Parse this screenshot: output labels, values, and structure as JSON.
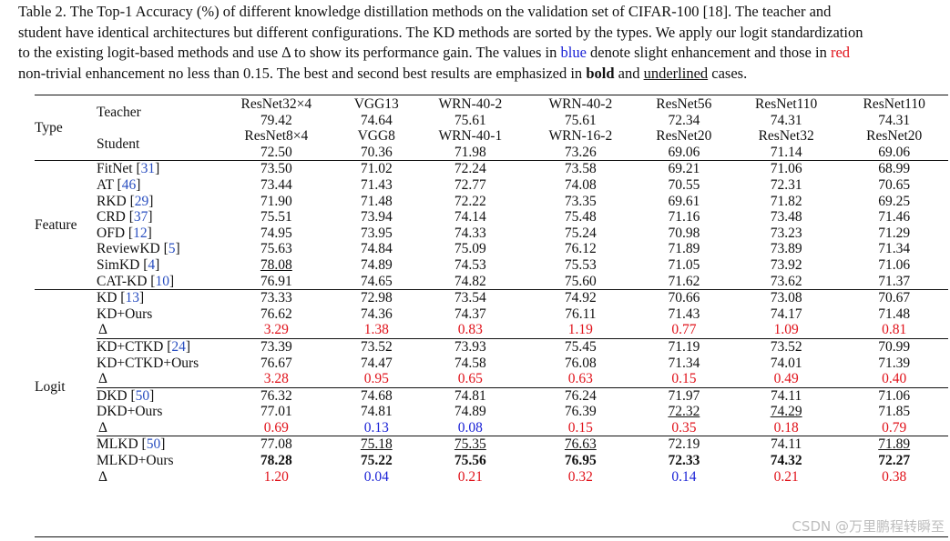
{
  "caption": {
    "line1": "Table 2. The Top-1 Accuracy (%) of different knowledge distillation methods on the validation set of CIFAR-100 [18]. The teacher and",
    "line2": "student have identical architectures but different configurations. The KD methods are sorted by the types. We apply our logit standardization",
    "line3_pre": "to the existing logit-based methods and use Δ to show its performance gain. The values in ",
    "line3_blue": "blue",
    "line3_mid": " denote slight enhancement and those in ",
    "line3_red": "red",
    "line4_pre": "non-trivial enhancement no less than 0.15. The best and second best results are emphasized in ",
    "line4_bold": "bold",
    "line4_mid": " and ",
    "line4_under": "underlined",
    "line4_post": " cases."
  },
  "header": {
    "type_label": "Type",
    "teacher_label": "Teacher",
    "student_label": "Student",
    "teachers": [
      "ResNet32×4",
      "VGG13",
      "WRN-40-2",
      "WRN-40-2",
      "ResNet56",
      "ResNet110",
      "ResNet110"
    ],
    "teacher_acc": [
      "79.42",
      "74.64",
      "75.61",
      "75.61",
      "72.34",
      "74.31",
      "74.31"
    ],
    "students": [
      "ResNet8×4",
      "VGG8",
      "WRN-40-1",
      "WRN-16-2",
      "ResNet20",
      "ResNet32",
      "ResNet20"
    ],
    "student_acc": [
      "72.50",
      "70.36",
      "71.98",
      "73.26",
      "69.06",
      "71.14",
      "69.06"
    ]
  },
  "feature": {
    "type_label": "Feature",
    "rows": [
      {
        "name": "FitNet",
        "ref": "31",
        "values": [
          "73.50",
          "71.02",
          "72.24",
          "73.58",
          "69.21",
          "71.06",
          "68.99"
        ]
      },
      {
        "name": "AT",
        "ref": "46",
        "values": [
          "73.44",
          "71.43",
          "72.77",
          "74.08",
          "70.55",
          "72.31",
          "70.65"
        ]
      },
      {
        "name": "RKD",
        "ref": "29",
        "values": [
          "71.90",
          "71.48",
          "72.22",
          "73.35",
          "69.61",
          "71.82",
          "69.25"
        ]
      },
      {
        "name": "CRD",
        "ref": "37",
        "values": [
          "75.51",
          "73.94",
          "74.14",
          "75.48",
          "71.16",
          "73.48",
          "71.46"
        ]
      },
      {
        "name": "OFD",
        "ref": "12",
        "values": [
          "74.95",
          "73.95",
          "74.33",
          "75.24",
          "70.98",
          "73.23",
          "71.29"
        ]
      },
      {
        "name": "ReviewKD",
        "ref": "5",
        "values": [
          "75.63",
          "74.84",
          "75.09",
          "76.12",
          "71.89",
          "73.89",
          "71.34"
        ]
      },
      {
        "name": "SimKD",
        "ref": "4",
        "values": [
          "78.08",
          "74.89",
          "74.53",
          "75.53",
          "71.05",
          "73.92",
          "71.06"
        ]
      },
      {
        "name": "CAT-KD",
        "ref": "10",
        "values": [
          "76.91",
          "74.65",
          "74.82",
          "75.60",
          "71.62",
          "73.62",
          "71.37"
        ]
      }
    ]
  },
  "logit": {
    "type_label": "Logit",
    "groups": [
      {
        "base": {
          "name": "KD",
          "ref": "13",
          "values": [
            "73.33",
            "72.98",
            "73.54",
            "74.92",
            "70.66",
            "73.08",
            "70.67"
          ]
        },
        "ours": {
          "name": "KD+Ours",
          "values": [
            "76.62",
            "74.36",
            "74.37",
            "76.11",
            "71.43",
            "74.17",
            "71.48"
          ]
        },
        "delta": {
          "name": "Δ",
          "values": [
            "3.29",
            "1.38",
            "0.83",
            "1.19",
            "0.77",
            "1.09",
            "0.81"
          ],
          "colors": [
            "red",
            "red",
            "red",
            "red",
            "red",
            "red",
            "red"
          ]
        }
      },
      {
        "base": {
          "name": "KD+CTKD",
          "ref": "24",
          "values": [
            "73.39",
            "73.52",
            "73.93",
            "75.45",
            "71.19",
            "73.52",
            "70.99"
          ]
        },
        "ours": {
          "name": "KD+CTKD+Ours",
          "values": [
            "76.67",
            "74.47",
            "74.58",
            "76.08",
            "71.34",
            "74.01",
            "71.39"
          ]
        },
        "delta": {
          "name": "Δ",
          "values": [
            "3.28",
            "0.95",
            "0.65",
            "0.63",
            "0.15",
            "0.49",
            "0.40"
          ],
          "colors": [
            "red",
            "red",
            "red",
            "red",
            "red",
            "red",
            "red"
          ]
        }
      },
      {
        "base": {
          "name": "DKD",
          "ref": "50",
          "values": [
            "76.32",
            "74.68",
            "74.81",
            "76.24",
            "71.97",
            "74.11",
            "71.06"
          ]
        },
        "ours": {
          "name": "DKD+Ours",
          "values": [
            "77.01",
            "74.81",
            "74.89",
            "76.39",
            "72.32",
            "74.29",
            "71.85"
          ]
        },
        "delta": {
          "name": "Δ",
          "values": [
            "0.69",
            "0.13",
            "0.08",
            "0.15",
            "0.35",
            "0.18",
            "0.79"
          ],
          "colors": [
            "red",
            "blue",
            "blue",
            "red",
            "red",
            "red",
            "red"
          ]
        }
      },
      {
        "base": {
          "name": "MLKD",
          "ref": "50",
          "values": [
            "77.08",
            "75.18",
            "75.35",
            "76.63",
            "72.19",
            "74.11",
            "71.89"
          ]
        },
        "ours": {
          "name": "MLKD+Ours",
          "values": [
            "78.28",
            "75.22",
            "75.56",
            "76.95",
            "72.33",
            "74.32",
            "72.27"
          ]
        },
        "delta": {
          "name": "Δ",
          "values": [
            "1.20",
            "0.04",
            "0.21",
            "0.32",
            "0.14",
            "0.21",
            "0.38"
          ],
          "colors": [
            "red",
            "blue",
            "red",
            "red",
            "blue",
            "red",
            "red"
          ]
        }
      }
    ]
  },
  "emphasis": {
    "underlined": [
      "feature.6.0",
      "logit.2.ours.4",
      "logit.2.ours.5",
      "logit.3.base.1",
      "logit.3.base.2",
      "logit.3.base.3",
      "logit.3.base.6"
    ],
    "bold": [
      "logit.3.ours.0",
      "logit.3.ours.1",
      "logit.3.ours.2",
      "logit.3.ours.3",
      "logit.3.ours.4",
      "logit.3.ours.5",
      "logit.3.ours.6"
    ]
  },
  "watermark": "CSDN @万里鹏程转瞬至"
}
